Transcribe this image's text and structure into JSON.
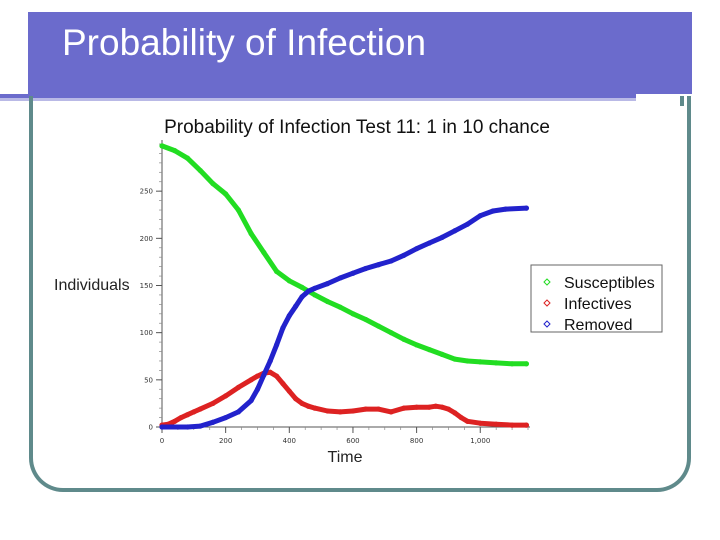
{
  "slide": {
    "title": "Probability of Infection",
    "colors": {
      "title_bar": "#6b6bcc",
      "frame": "#5f8a8b"
    }
  },
  "chart_data": {
    "type": "line",
    "title": "Probability of Infection Test 11:  1 in 10 chance",
    "xlabel": "Time",
    "ylabel": "Individuals",
    "xlim": [
      0,
      1150
    ],
    "ylim": [
      0,
      300
    ],
    "x_ticks": [
      0,
      200,
      400,
      600,
      800,
      1000
    ],
    "x_tick_labels": [
      "0",
      "200",
      "400",
      "600",
      "800",
      "1,000"
    ],
    "y_ticks": [
      0,
      50,
      100,
      150,
      200,
      250
    ],
    "y_tick_labels": [
      "0",
      "50",
      "100",
      "150",
      "200",
      "250"
    ],
    "grid": false,
    "legend_position": "right",
    "series": [
      {
        "name": "Susceptibles",
        "color": "#22dd22",
        "points": [
          [
            0,
            298
          ],
          [
            40,
            293
          ],
          [
            80,
            285
          ],
          [
            120,
            272
          ],
          [
            160,
            258
          ],
          [
            200,
            247
          ],
          [
            240,
            230
          ],
          [
            280,
            205
          ],
          [
            320,
            185
          ],
          [
            360,
            165
          ],
          [
            400,
            155
          ],
          [
            440,
            148
          ],
          [
            480,
            140
          ],
          [
            520,
            133
          ],
          [
            560,
            127
          ],
          [
            600,
            120
          ],
          [
            640,
            114
          ],
          [
            680,
            107
          ],
          [
            720,
            100
          ],
          [
            760,
            93
          ],
          [
            800,
            87
          ],
          [
            840,
            82
          ],
          [
            880,
            77
          ],
          [
            920,
            72
          ],
          [
            960,
            70
          ],
          [
            1000,
            69
          ],
          [
            1050,
            68
          ],
          [
            1100,
            67
          ],
          [
            1145,
            67
          ]
        ]
      },
      {
        "name": "Infectives",
        "color": "#dd2222",
        "points": [
          [
            0,
            2
          ],
          [
            20,
            3
          ],
          [
            40,
            6
          ],
          [
            60,
            10
          ],
          [
            80,
            13
          ],
          [
            100,
            16
          ],
          [
            120,
            19
          ],
          [
            160,
            25
          ],
          [
            200,
            33
          ],
          [
            240,
            42
          ],
          [
            280,
            50
          ],
          [
            300,
            54
          ],
          [
            320,
            57
          ],
          [
            340,
            58
          ],
          [
            360,
            54
          ],
          [
            380,
            46
          ],
          [
            400,
            38
          ],
          [
            420,
            30
          ],
          [
            440,
            25
          ],
          [
            460,
            22
          ],
          [
            480,
            20
          ],
          [
            520,
            17
          ],
          [
            560,
            16
          ],
          [
            600,
            17
          ],
          [
            640,
            19
          ],
          [
            680,
            19
          ],
          [
            720,
            16
          ],
          [
            760,
            20
          ],
          [
            800,
            21
          ],
          [
            840,
            21
          ],
          [
            860,
            22
          ],
          [
            880,
            21
          ],
          [
            900,
            19
          ],
          [
            920,
            15
          ],
          [
            940,
            10
          ],
          [
            960,
            6
          ],
          [
            1000,
            4
          ],
          [
            1050,
            3
          ],
          [
            1100,
            2
          ],
          [
            1145,
            2
          ]
        ]
      },
      {
        "name": "Removed",
        "color": "#2222cc",
        "points": [
          [
            0,
            0
          ],
          [
            80,
            0
          ],
          [
            120,
            1
          ],
          [
            160,
            5
          ],
          [
            200,
            10
          ],
          [
            240,
            16
          ],
          [
            280,
            28
          ],
          [
            300,
            40
          ],
          [
            320,
            55
          ],
          [
            340,
            70
          ],
          [
            360,
            87
          ],
          [
            380,
            105
          ],
          [
            400,
            118
          ],
          [
            420,
            128
          ],
          [
            440,
            138
          ],
          [
            460,
            144
          ],
          [
            480,
            147
          ],
          [
            520,
            152
          ],
          [
            560,
            158
          ],
          [
            600,
            163
          ],
          [
            640,
            168
          ],
          [
            680,
            172
          ],
          [
            720,
            176
          ],
          [
            760,
            182
          ],
          [
            800,
            189
          ],
          [
            840,
            195
          ],
          [
            880,
            201
          ],
          [
            920,
            208
          ],
          [
            960,
            215
          ],
          [
            1000,
            224
          ],
          [
            1040,
            229
          ],
          [
            1080,
            231
          ],
          [
            1145,
            232
          ]
        ]
      }
    ]
  }
}
